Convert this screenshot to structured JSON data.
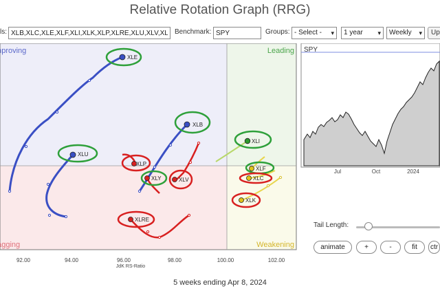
{
  "page": {
    "title": "Relative Rotation Graph (RRG)",
    "footer": "5 weeks ending Apr 8, 2024"
  },
  "controls": {
    "symbols_label": "ls:",
    "symbols_value": "XLB,XLC,XLE,XLF,XLI,XLK,XLP,XLRE,XLU,XLV,XL",
    "benchmark_label": "Benchmark:",
    "benchmark_value": "SPY",
    "groups_label": "Groups:",
    "groups_value": "- Select -",
    "period_value": "1 year",
    "frequency_value": "Weekly",
    "update_button": "Up"
  },
  "rrg": {
    "xlabel": "JdK RS-Ratio",
    "x_ticks": [
      "92.00",
      "94.00",
      "96.00",
      "98.00",
      "100.00",
      "102.00"
    ],
    "quadrants": {
      "improving": "Improving",
      "leading": "Leading",
      "lagging": "Lagging",
      "weakening": "Weakening"
    },
    "colors": {
      "improving": "#eeeef9",
      "leading": "#eef6ea",
      "lagging": "#fbe9ea",
      "weakening": "#fafaea"
    },
    "sectors": [
      {
        "symbol": "XLE",
        "color": "#3a4fc4",
        "highlight": "green"
      },
      {
        "symbol": "XLB",
        "color": "#3a4fc4",
        "highlight": "green"
      },
      {
        "symbol": "XLU",
        "color": "#3a4fc4",
        "highlight": "green"
      },
      {
        "symbol": "XLP",
        "color": "#d82020",
        "highlight": "red"
      },
      {
        "symbol": "XLY",
        "color": "#2b3fb8",
        "highlight": "green"
      },
      {
        "symbol": "XLV",
        "color": "#d82020",
        "highlight": "red"
      },
      {
        "symbol": "XLRE",
        "color": "#d82020",
        "highlight": "red"
      },
      {
        "symbol": "XLI",
        "color": "#2e9a2e",
        "highlight": "green"
      },
      {
        "symbol": "XLF",
        "color": "#e0c21a",
        "highlight": "green"
      },
      {
        "symbol": "XLC",
        "color": "#e0c21a",
        "highlight": "red"
      },
      {
        "symbol": "XLK",
        "color": "#e0c21a",
        "highlight": "red"
      }
    ]
  },
  "benchmark_chart": {
    "title": "SPY",
    "x_ticks": [
      "Jul",
      "Oct",
      "2024"
    ]
  },
  "animation": {
    "tail_length_label": "Tail Length:",
    "tail_length_fraction": 0.15,
    "buttons": {
      "animate": "animate",
      "plus": "+",
      "minus": "-",
      "fit": "fit",
      "ctrl": "ctr"
    }
  }
}
